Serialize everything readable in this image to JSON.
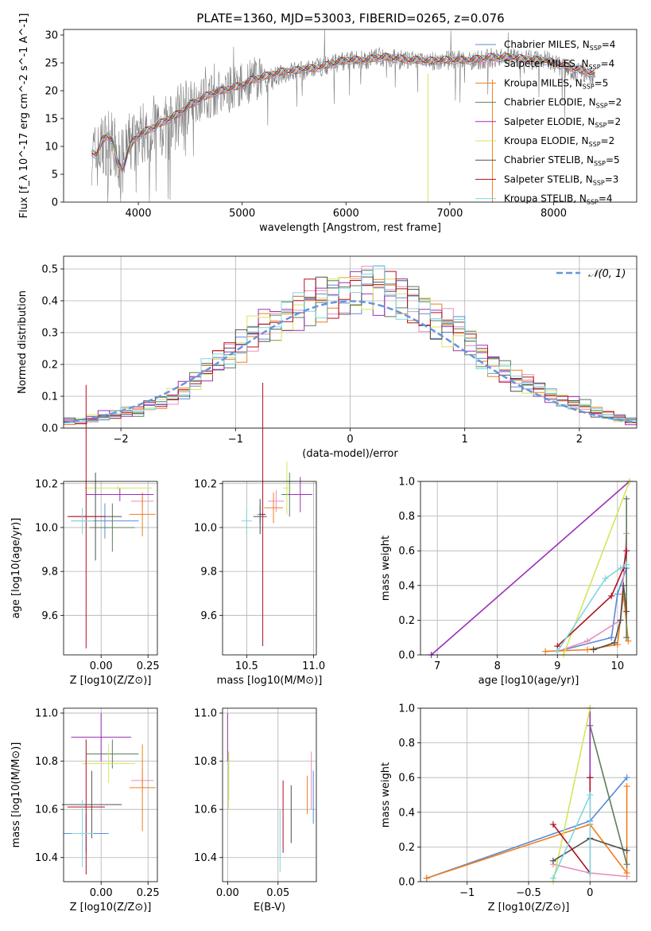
{
  "title": "PLATE=1360, MJD=53003, FIBERID=0265, z=0.076",
  "colors": {
    "Chabrier MILES": "#5b8bd8",
    "Salpeter MILES": "#e88fbf",
    "Kroupa MILES": "#f07f1e",
    "Chabrier ELODIE": "#5d7d5b",
    "Salpeter ELODIE": "#9b30b8",
    "Kroupa ELODIE": "#d4e65a",
    "Chabrier STELIB": "#505050",
    "Salpeter STELIB": "#b01020",
    "Kroupa STELIB": "#7fd7e0"
  },
  "chart_data": [
    {
      "id": "spectrum",
      "type": "line",
      "title": "PLATE=1360, MJD=53003, FIBERID=0265, z=0.076",
      "xlabel": "wavelength [Angstrom, rest frame]",
      "ylabel": "Flux [f_λ 10^-17 erg cm^-2 s^-1 A^-1]",
      "xlim": [
        3280,
        8800
      ],
      "ylim": [
        0,
        31
      ],
      "xticks": [
        4000,
        5000,
        6000,
        7000,
        8000
      ],
      "yticks": [
        0,
        5,
        10,
        15,
        20,
        25,
        30
      ],
      "grid": false,
      "legend_position": "right",
      "data_x": [
        3550,
        3600,
        3650,
        3700,
        3750,
        3800,
        3850,
        3900,
        3950,
        4000,
        4100,
        4200,
        4300,
        4400,
        4500,
        4600,
        4700,
        4800,
        4900,
        5000,
        5100,
        5200,
        5300,
        5400,
        5500,
        5600,
        5700,
        5800,
        5900,
        6000,
        6100,
        6200,
        6300,
        6400,
        6500,
        6600,
        6700,
        6800,
        6900,
        7000,
        7100,
        7200,
        7300,
        7400,
        7500,
        7600,
        7700,
        7800,
        7900,
        8000,
        8100,
        8200,
        8300,
        8400
      ],
      "data_y": [
        9,
        8,
        10,
        11,
        10,
        8,
        7,
        10,
        11,
        12,
        13,
        14,
        13,
        16,
        18,
        18.5,
        19,
        20,
        20.5,
        21,
        22,
        22.5,
        22.5,
        23,
        23.5,
        23.5,
        24,
        24.5,
        25,
        25.5,
        25.5,
        25.5,
        26,
        26,
        25.5,
        25.5,
        25.5,
        25,
        25.5,
        25.5,
        25.5,
        25.5,
        25.5,
        26,
        26,
        26,
        25.5,
        25.5,
        26,
        25,
        24,
        23.5,
        23,
        22.5
      ],
      "model_y": [
        9,
        8.5,
        11,
        12,
        11,
        7,
        6,
        9,
        11,
        12,
        13,
        14,
        15,
        16,
        17.5,
        18.5,
        19.5,
        20,
        20.5,
        21,
        22,
        22.5,
        23,
        23.5,
        23.5,
        24,
        24,
        24.5,
        25,
        25.5,
        25.5,
        25.5,
        26,
        26,
        25.8,
        25.5,
        25.5,
        25.3,
        25.5,
        25.5,
        25.5,
        25.5,
        25.8,
        26,
        26,
        26,
        25.7,
        25.5,
        25.5,
        25,
        24.5,
        24,
        23.5,
        23
      ],
      "series": [
        {
          "name": "Chabrier MILES, N_SSP=4"
        },
        {
          "name": "Salpeter MILES, N_SSP=4"
        },
        {
          "name": "Kroupa MILES, N_SSP=5"
        },
        {
          "name": "Chabrier ELODIE, N_SSP=2"
        },
        {
          "name": "Salpeter ELODIE, N_SSP=2"
        },
        {
          "name": "Kroupa ELODIE, N_SSP=2"
        },
        {
          "name": "Chabrier STELIB, N_SSP=5"
        },
        {
          "name": "Salpeter STELIB, N_SSP=3"
        },
        {
          "name": "Kroupa STELIB, N_SSP=4"
        }
      ]
    },
    {
      "id": "residuals",
      "type": "line",
      "xlabel": "(data-model)/error",
      "ylabel": "Normed distribution",
      "xlim": [
        -2.5,
        2.5
      ],
      "ylim": [
        0,
        0.54
      ],
      "xticks": [
        -2,
        -1,
        0,
        1,
        2
      ],
      "yticks": [
        0.0,
        0.1,
        0.2,
        0.3,
        0.4,
        0.5
      ],
      "grid": true,
      "legend_position": "top-right",
      "reference_label": "N(0,1)",
      "bin_centers": [
        -2.45,
        -2.35,
        -2.25,
        -2.15,
        -2.05,
        -1.95,
        -1.85,
        -1.75,
        -1.65,
        -1.55,
        -1.45,
        -1.35,
        -1.25,
        -1.15,
        -1.05,
        -0.95,
        -0.85,
        -0.75,
        -0.65,
        -0.55,
        -0.45,
        -0.35,
        -0.25,
        -0.15,
        -0.05,
        0.05,
        0.15,
        0.25,
        0.35,
        0.45,
        0.55,
        0.65,
        0.75,
        0.85,
        0.95,
        1.05,
        1.15,
        1.25,
        1.35,
        1.45,
        1.55,
        1.65,
        1.75,
        1.85,
        1.95,
        2.05,
        2.15,
        2.25,
        2.35,
        2.45
      ],
      "hist_mean": [
        0.02,
        0.02,
        0.03,
        0.04,
        0.04,
        0.05,
        0.05,
        0.07,
        0.08,
        0.1,
        0.12,
        0.15,
        0.18,
        0.21,
        0.23,
        0.26,
        0.3,
        0.33,
        0.33,
        0.35,
        0.37,
        0.4,
        0.41,
        0.42,
        0.43,
        0.44,
        0.45,
        0.44,
        0.43,
        0.42,
        0.4,
        0.37,
        0.34,
        0.32,
        0.3,
        0.27,
        0.23,
        0.2,
        0.18,
        0.15,
        0.14,
        0.12,
        0.1,
        0.09,
        0.08,
        0.07,
        0.05,
        0.04,
        0.03,
        0.02
      ]
    },
    {
      "id": "age_vs_Z",
      "type": "scatter",
      "xlabel": "Z [log10(Z/Z⊙)]",
      "ylabel": "age  [log10(age/yr)]",
      "xlim": [
        -0.2,
        0.3
      ],
      "ylim": [
        9.42,
        10.21
      ],
      "xticks": [
        "0.00",
        "0.25"
      ],
      "xtick_values": [
        0.0,
        0.25
      ],
      "yticks": [
        9.6,
        9.8,
        10.0,
        10.2
      ],
      "grid": true,
      "points": [
        {
          "x": 0.02,
          "y": 10.03,
          "xerr": 0.18,
          "yerr": 0.08
        },
        {
          "x": 0.22,
          "y": 10.12,
          "xerr": 0.06,
          "yerr": 0.03
        },
        {
          "x": 0.22,
          "y": 10.06,
          "xerr": 0.07,
          "yerr": 0.1
        },
        {
          "x": 0.06,
          "y": 10.0,
          "xerr": 0.12,
          "yerr": 0.11
        },
        {
          "x": 0.1,
          "y": 10.15,
          "xerr": 0.18,
          "yerr": 0.03
        },
        {
          "x": 0.09,
          "y": 10.18,
          "xerr": 0.18,
          "yerr": 0.01
        },
        {
          "x": -0.03,
          "y": 10.05,
          "xerr": 0.14,
          "yerr": 0.2
        },
        {
          "x": -0.08,
          "y": 10.05,
          "xerr": 0.1,
          "yerr": 0.6
        },
        {
          "x": -0.1,
          "y": 10.03,
          "xerr": 0.06,
          "yerr": 0.06
        }
      ]
    },
    {
      "id": "age_vs_mass",
      "type": "scatter",
      "xlabel": "mass [log10(M/M⊙)]",
      "ylabel": "",
      "xlim": [
        10.32,
        11.02
      ],
      "ylim": [
        9.42,
        10.21
      ],
      "xticks": [
        "10.5",
        "11.0"
      ],
      "xtick_values": [
        10.5,
        11.0
      ],
      "yticks": [
        9.6,
        9.8,
        10.0,
        10.2
      ],
      "grid": true,
      "points": [
        {
          "x": 10.6,
          "y": 10.06,
          "xerr": 0.02,
          "yerr": 0.04
        },
        {
          "x": 10.72,
          "y": 10.12,
          "xerr": 0.06,
          "yerr": 0.05
        },
        {
          "x": 10.7,
          "y": 10.09,
          "xerr": 0.07,
          "yerr": 0.07
        },
        {
          "x": 10.82,
          "y": 10.15,
          "xerr": 0.06,
          "yerr": 0.1
        },
        {
          "x": 10.9,
          "y": 10.15,
          "xerr": 0.09,
          "yerr": 0.08
        },
        {
          "x": 10.8,
          "y": 10.18,
          "xerr": 0.03,
          "yerr": 0.12
        },
        {
          "x": 10.6,
          "y": 10.05,
          "xerr": 0.05,
          "yerr": 0.08
        },
        {
          "x": 10.62,
          "y": 10.06,
          "xerr": 0.02,
          "yerr": 0.6
        },
        {
          "x": 10.5,
          "y": 10.03,
          "xerr": 0.04,
          "yerr": 0.06
        }
      ]
    },
    {
      "id": "weight_vs_age",
      "type": "line",
      "xlabel": "age  [log10(age/yr)]",
      "ylabel": "mass weight",
      "xlim": [
        6.72,
        10.32
      ],
      "ylim": [
        0,
        1.0
      ],
      "xticks": [
        7,
        8,
        9,
        10
      ],
      "yticks": [
        0.0,
        0.2,
        0.4,
        0.6,
        0.8,
        1.0
      ],
      "grid": true,
      "series": [
        {
          "name": "Chabrier MILES",
          "x": [
            9.0,
            9.9,
            10.0,
            10.15
          ],
          "y": [
            0.02,
            0.1,
            0.35,
            0.5
          ]
        },
        {
          "name": "Salpeter MILES",
          "x": [
            9.0,
            9.5,
            10.05,
            10.15
          ],
          "y": [
            0.02,
            0.08,
            0.2,
            0.7
          ]
        },
        {
          "name": "Kroupa MILES",
          "x": [
            8.8,
            9.5,
            10.0,
            10.1,
            10.18
          ],
          "y": [
            0.02,
            0.03,
            0.06,
            0.35,
            0.08
          ]
        },
        {
          "name": "Chabrier ELODIE",
          "x": [
            10.15,
            10.15
          ],
          "y": [
            0.1,
            0.9
          ]
        },
        {
          "name": "Salpeter ELODIE",
          "x": [
            6.9,
            10.2
          ],
          "y": [
            0.0,
            1.0
          ]
        },
        {
          "name": "Kroupa ELODIE",
          "x": [
            9.1,
            10.2
          ],
          "y": [
            0.0,
            1.0
          ]
        },
        {
          "name": "Chabrier STELIB",
          "x": [
            9.6,
            9.95,
            10.05,
            10.1,
            10.15
          ],
          "y": [
            0.03,
            0.07,
            0.2,
            0.4,
            0.25
          ]
        },
        {
          "name": "Salpeter STELIB",
          "x": [
            9.0,
            9.9,
            10.1,
            10.15
          ],
          "y": [
            0.05,
            0.34,
            0.5,
            0.6
          ]
        },
        {
          "name": "Kroupa STELIB",
          "x": [
            9.0,
            9.8,
            10.05,
            10.15
          ],
          "y": [
            0.02,
            0.44,
            0.5,
            0.52
          ]
        }
      ]
    },
    {
      "id": "mass_vs_Z",
      "type": "scatter",
      "xlabel": "Z [log10(Z/Z⊙)]",
      "ylabel": "mass [log10(M/M⊙)]",
      "xlim": [
        -0.2,
        0.3
      ],
      "ylim": [
        10.3,
        11.02
      ],
      "xticks": [
        "0.00",
        "0.25"
      ],
      "xtick_values": [
        0.0,
        0.25
      ],
      "yticks": [
        10.4,
        10.6,
        10.8,
        11.0
      ],
      "grid": true,
      "points": [
        {
          "x": -0.08,
          "y": 10.5,
          "xerr": 0.12,
          "yerr": 0.08
        },
        {
          "x": 0.22,
          "y": 10.72,
          "xerr": 0.06,
          "yerr": 0.05
        },
        {
          "x": 0.22,
          "y": 10.69,
          "xerr": 0.07,
          "yerr": 0.18
        },
        {
          "x": 0.06,
          "y": 10.83,
          "xerr": 0.14,
          "yerr": 0.06
        },
        {
          "x": 0.0,
          "y": 10.9,
          "xerr": 0.16,
          "yerr": 0.1
        },
        {
          "x": 0.04,
          "y": 10.79,
          "xerr": 0.14,
          "yerr": 0.08
        },
        {
          "x": -0.05,
          "y": 10.62,
          "xerr": 0.16,
          "yerr": 0.14
        },
        {
          "x": -0.08,
          "y": 10.61,
          "xerr": 0.1,
          "yerr": 0.28
        },
        {
          "x": -0.1,
          "y": 10.5,
          "xerr": 0.06,
          "yerr": 0.14
        }
      ]
    },
    {
      "id": "mass_vs_ebv",
      "type": "scatter",
      "xlabel": "E(B-V)",
      "ylabel": "",
      "xlim": [
        -0.005,
        0.088
      ],
      "ylim": [
        10.3,
        11.02
      ],
      "xticks": [
        "0.00",
        "0.05"
      ],
      "xtick_values": [
        0.0,
        0.05
      ],
      "yticks": [
        10.4,
        10.6,
        10.8,
        11.0
      ],
      "grid": true,
      "points": [
        {
          "x": 0.085,
          "y": 10.65,
          "xerr": 0,
          "yerr": 0.11
        },
        {
          "x": 0.083,
          "y": 10.72,
          "xerr": 0,
          "yerr": 0.12
        },
        {
          "x": 0.079,
          "y": 10.66,
          "xerr": 0,
          "yerr": 0.08
        },
        {
          "x": 0.001,
          "y": 10.74,
          "xerr": 0,
          "yerr": 0.1
        },
        {
          "x": 0.0,
          "y": 10.9,
          "xerr": 0,
          "yerr": 0.1
        },
        {
          "x": 0.001,
          "y": 10.72,
          "xerr": 0,
          "yerr": 0.12
        },
        {
          "x": 0.063,
          "y": 10.58,
          "xerr": 0,
          "yerr": 0.12
        },
        {
          "x": 0.055,
          "y": 10.57,
          "xerr": 0,
          "yerr": 0.15
        },
        {
          "x": 0.052,
          "y": 10.47,
          "xerr": 0,
          "yerr": 0.13
        }
      ]
    },
    {
      "id": "weight_vs_Z",
      "type": "line",
      "xlabel": "Z [log10(Z/Z⊙)]",
      "ylabel": "mass weight",
      "xlim": [
        -1.38,
        0.38
      ],
      "ylim": [
        0,
        1.0
      ],
      "xticks": [
        -1.0,
        -0.5,
        0.0
      ],
      "yticks": [
        0.0,
        0.2,
        0.4,
        0.6,
        0.8,
        1.0
      ],
      "grid": true,
      "series": [
        {
          "name": "Chabrier MILES",
          "x": [
            -1.33,
            0.0,
            0.3
          ],
          "y": [
            0.02,
            0.35,
            0.6
          ]
        },
        {
          "name": "Salpeter MILES",
          "x": [
            -0.3,
            0.0,
            0.3
          ],
          "y": [
            0.1,
            0.05,
            0.03
          ]
        },
        {
          "name": "Kroupa MILES",
          "x": [
            -1.33,
            0.0,
            0.3,
            0.3
          ],
          "y": [
            0.02,
            0.33,
            0.05,
            0.55
          ]
        },
        {
          "name": "Chabrier ELODIE",
          "x": [
            0.0,
            0.3
          ],
          "y": [
            0.9,
            0.1
          ]
        },
        {
          "name": "Salpeter ELODIE",
          "x": [
            0.0,
            0.0
          ],
          "y": [
            0.6,
            1.0
          ]
        },
        {
          "name": "Kroupa ELODIE",
          "x": [
            -0.3,
            0.0
          ],
          "y": [
            0.0,
            1.0
          ]
        },
        {
          "name": "Chabrier STELIB",
          "x": [
            -0.3,
            0.0,
            0.3
          ],
          "y": [
            0.12,
            0.25,
            0.18
          ]
        },
        {
          "name": "Salpeter STELIB",
          "x": [
            -0.3,
            0.0,
            0.0
          ],
          "y": [
            0.33,
            0.05,
            0.6
          ]
        },
        {
          "name": "Kroupa STELIB",
          "x": [
            -0.3,
            0.0,
            0.0
          ],
          "y": [
            0.02,
            0.5,
            0.05
          ]
        }
      ]
    }
  ]
}
